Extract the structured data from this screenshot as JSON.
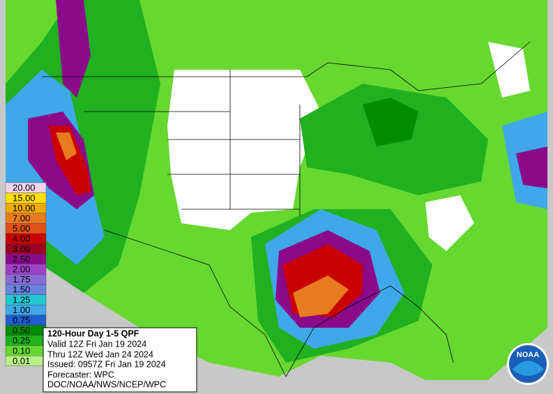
{
  "legend": [
    {
      "label": "20.00",
      "color": "#f4d2ee"
    },
    {
      "label": "15.00",
      "color": "#ffe000"
    },
    {
      "label": "10.00",
      "color": "#f0a800"
    },
    {
      "label": "7.00",
      "color": "#e87a20"
    },
    {
      "label": "5.00",
      "color": "#e05018"
    },
    {
      "label": "4.00",
      "color": "#c80000"
    },
    {
      "label": "3.00",
      "color": "#9c0020"
    },
    {
      "label": "2.50",
      "color": "#8a0a8a"
    },
    {
      "label": "2.00",
      "color": "#a040c8"
    },
    {
      "label": "1.75",
      "color": "#8a6ad8"
    },
    {
      "label": "1.50",
      "color": "#6a82e0"
    },
    {
      "label": "1.25",
      "color": "#20c8d0"
    },
    {
      "label": "1.00",
      "color": "#40a8e8"
    },
    {
      "label": "0.75",
      "color": "#1e5ed0"
    },
    {
      "label": "0.50",
      "color": "#008c00"
    },
    {
      "label": "0.25",
      "color": "#20b020"
    },
    {
      "label": "0.10",
      "color": "#66d830"
    },
    {
      "label": "0.01",
      "color": "#b8f088"
    }
  ],
  "info": {
    "title": "120-Hour Day 1-5 QPF",
    "valid": "Valid 12Z Fri Jan 19 2024",
    "thru": "Thru 12Z Wed Jan 24 2024",
    "issued": "Issued: 0957Z Fri Jan 19 2024",
    "forecaster": "Forecaster: WPC",
    "office": "DOC/NOAA/NWS/NCEP/WPC"
  },
  "logo": "NOAA"
}
